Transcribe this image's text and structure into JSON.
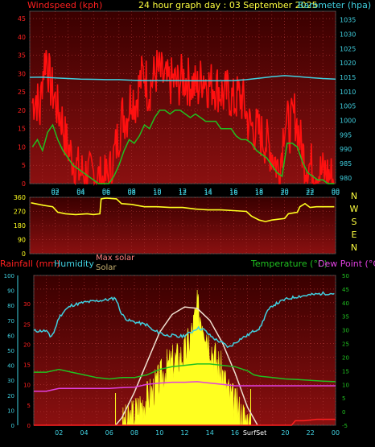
{
  "header": {
    "left_title": "Windspeed (kph)",
    "center_title": "24 hour graph day : 03 September 2025",
    "right_title": "Barometer (hpa)"
  },
  "colors": {
    "background": "#000000",
    "plot_top": "#3a0000",
    "plot_bottom": "#8a1010",
    "gridline": "#b23a3a",
    "red_text": "#ff2020",
    "cyan": "#40d0e0",
    "green": "#20c020",
    "yellow": "#ffff20",
    "magenta": "#e040e0",
    "light_pink": "#ff8080",
    "tan": "#c8b070",
    "white_curve": "#f0e0d0",
    "label_yellow": "#ffff40"
  },
  "x_axis": {
    "ticks": [
      "02",
      "04",
      "06",
      "08",
      "10",
      "12",
      "14",
      "16",
      "18",
      "20",
      "22",
      "00"
    ],
    "bottom_special": {
      "surfset_label": "SurfSet",
      "surfset_time": 17.25,
      "sunrise_time": 6.5
    }
  },
  "chart_data": [
    {
      "type": "line",
      "name": "wind_and_pressure",
      "x_unit": "hours from 00:00",
      "y_left_ticks": [
        0,
        5,
        10,
        15,
        20,
        25,
        30,
        35,
        40,
        45
      ],
      "ylim_left": [
        0,
        47
      ],
      "y_right_ticks": [
        980,
        985,
        990,
        995,
        1000,
        1005,
        1010,
        1015,
        1020,
        1025,
        1030,
        1035
      ],
      "ylim_right": [
        978,
        1038
      ],
      "grid": true,
      "series": [
        {
          "axis": "left",
          "x": [
            0.2,
            0.5,
            0.8,
            1.0,
            1.3,
            1.6,
            1.9,
            2.2,
            2.5,
            2.8,
            3.1,
            3.5,
            3.9,
            4.3,
            4.7,
            5.1,
            5.5,
            5.9,
            6.3,
            6.7,
            7.0,
            7.3,
            7.6,
            8.0,
            8.3,
            8.6,
            9.0,
            9.3,
            9.6,
            10.0,
            10.4,
            10.8,
            11.2,
            11.6,
            12.0,
            12.4,
            12.8,
            13.2,
            13.6,
            14.0,
            14.4,
            14.8,
            15.2,
            15.6,
            16.0,
            16.4,
            16.8,
            17.2,
            17.6,
            18.0,
            18.4,
            18.8,
            19.2,
            19.6,
            20.0,
            20.4,
            20.8,
            21.2,
            21.6,
            22.0,
            22.4,
            22.8,
            23.2,
            23.6,
            23.9
          ],
          "values": [
            22,
            24,
            19,
            30,
            36,
            27,
            24,
            20,
            18,
            12,
            9,
            6,
            3,
            3,
            2,
            3,
            1,
            1,
            3,
            9,
            14,
            19,
            18,
            25,
            22,
            27,
            31,
            25,
            28,
            31,
            29,
            27,
            28,
            27,
            29,
            28,
            27,
            26,
            30,
            27,
            27,
            26,
            24,
            25,
            22,
            24,
            22,
            16,
            15,
            14,
            12,
            10,
            7,
            3,
            18,
            15,
            19,
            12,
            6,
            5,
            4,
            3,
            3,
            2,
            1
          ]
        },
        {
          "axis": "left",
          "x": [
            0.2,
            0.6,
            1.0,
            1.4,
            1.8,
            2.2,
            2.6,
            3.0,
            3.4,
            3.8,
            4.2,
            4.6,
            5.0,
            5.4,
            5.8,
            6.2,
            6.6,
            7.0,
            7.4,
            7.8,
            8.2,
            8.6,
            9.0,
            9.4,
            9.8,
            10.2,
            10.6,
            11.0,
            11.4,
            11.8,
            12.2,
            12.6,
            13.0,
            13.4,
            13.8,
            14.2,
            14.6,
            15.0,
            15.4,
            15.8,
            16.2,
            16.6,
            17.0,
            17.4,
            17.8,
            18.2,
            18.6,
            19.0,
            19.4,
            19.8,
            20.2,
            20.6,
            21.0,
            21.4,
            21.8,
            22.2,
            22.6,
            23.0,
            23.4,
            23.9
          ],
          "values": [
            10,
            12,
            9,
            14,
            16,
            12,
            9,
            7,
            5,
            4,
            3,
            2,
            1,
            0,
            0,
            0,
            2,
            5,
            9,
            12,
            11,
            13,
            16,
            15,
            18,
            20,
            20,
            19,
            20,
            20,
            19,
            18,
            19,
            18,
            17,
            17,
            17,
            15,
            15,
            15,
            13,
            12,
            12,
            11,
            9,
            8,
            7,
            5,
            3,
            2,
            11,
            11,
            10,
            6,
            3,
            2,
            1,
            1,
            0,
            0
          ]
        },
        {
          "axis": "right",
          "x": [
            0.0,
            1.0,
            2.0,
            3.0,
            4.0,
            5.0,
            6.0,
            7.0,
            8.0,
            9.0,
            10.0,
            11.0,
            12.0,
            13.0,
            14.0,
            15.0,
            16.0,
            17.0,
            18.0,
            19.0,
            20.0,
            21.0,
            22.0,
            23.0,
            24.0
          ],
          "values": [
            1015,
            1015.1,
            1014.8,
            1014.6,
            1014.4,
            1014.3,
            1014.2,
            1014.2,
            1014,
            1013.9,
            1013.9,
            1013.9,
            1013.9,
            1013.8,
            1013.8,
            1013.8,
            1013.9,
            1014.2,
            1014.7,
            1015.2,
            1015.6,
            1015.3,
            1014.9,
            1014.6,
            1014.4
          ]
        }
      ]
    },
    {
      "type": "line",
      "name": "wind_direction",
      "x_unit": "hours from 00:00",
      "y_left_ticks": [
        0,
        90,
        180,
        270,
        360
      ],
      "ylim": [
        0,
        360
      ],
      "compass_labels": [
        "N",
        "W",
        "S",
        "E",
        "N"
      ],
      "grid": true,
      "series": [
        {
          "x": [
            0.1,
            1.0,
            1.8,
            2.2,
            2.8,
            3.6,
            4.5,
            5.0,
            5.5,
            5.6,
            6.0,
            6.8,
            7.2,
            8.0,
            9.0,
            10.0,
            11.0,
            12.0,
            13.0,
            14.0,
            15.0,
            16.0,
            17.0,
            17.4,
            18.0,
            18.5,
            19.0,
            19.5,
            20.0,
            20.3,
            21.0,
            21.2,
            21.6,
            22.0,
            22.5,
            23.0,
            23.9
          ],
          "values": [
            325,
            310,
            300,
            265,
            255,
            250,
            255,
            250,
            255,
            350,
            355,
            350,
            320,
            315,
            300,
            300,
            295,
            295,
            285,
            280,
            280,
            275,
            270,
            240,
            215,
            205,
            215,
            220,
            225,
            255,
            265,
            300,
            320,
            295,
            300,
            300,
            300
          ]
        }
      ]
    },
    {
      "type": "line",
      "name": "rain_humidity_temperature_solar",
      "x_unit": "hours from 00:00",
      "y_rainfall_ticks": [
        0,
        10,
        20,
        30,
        40,
        50,
        60,
        70,
        80,
        90,
        100
      ],
      "y_humidity_ticks": [
        0,
        5,
        10,
        15,
        20,
        25,
        30
      ],
      "y_temperature_ticks": [
        -5,
        0,
        5,
        10,
        15,
        20,
        25,
        30,
        35,
        40,
        45,
        50
      ],
      "ylim_rainfall": [
        0,
        100
      ],
      "ylim_temperature": [
        -5,
        50
      ],
      "legend": {
        "rainfall": "Rainfall (mm)",
        "humidity": "Humidity",
        "max_solar": "Max solar",
        "solar": "Solar",
        "temperature": "Temperature (°C)",
        "dewpoint": "Dew Point (°C)"
      },
      "series": [
        {
          "name": "Humidity",
          "axis": "rainfall",
          "x": [
            0.0,
            0.5,
            1.0,
            1.3,
            1.6,
            2.0,
            2.5,
            3.0,
            3.5,
            4.0,
            5.0,
            6.0,
            6.5,
            7.0,
            7.5,
            8.0,
            8.5,
            9.0,
            9.5,
            10.0,
            10.5,
            11.0,
            11.5,
            12.0,
            12.5,
            13.0,
            13.5,
            14.0,
            14.5,
            15.0,
            15.5,
            16.0,
            16.5,
            17.0,
            17.5,
            18.0,
            18.5,
            19.0,
            19.5,
            20.0,
            21.0,
            22.0,
            23.0,
            24.0
          ],
          "values": [
            63,
            63,
            63,
            59,
            62,
            72,
            77,
            80,
            81,
            82,
            83,
            84,
            85,
            74,
            70,
            69,
            68,
            67,
            63,
            62,
            60,
            60,
            59,
            60,
            62,
            65,
            64,
            60,
            57,
            55,
            52,
            55,
            58,
            60,
            63,
            65,
            75,
            80,
            82,
            84,
            86,
            87,
            88,
            88
          ]
        },
        {
          "name": "Temperature",
          "axis": "temperature",
          "x": [
            0.0,
            1.0,
            2.0,
            3.0,
            4.0,
            5.0,
            6.0,
            7.0,
            8.0,
            9.0,
            10.0,
            11.0,
            12.0,
            13.0,
            14.0,
            15.0,
            16.0,
            17.0,
            17.5,
            18.0,
            19.0,
            20.0,
            21.0,
            22.0,
            23.0,
            24.0
          ],
          "values": [
            14.5,
            14.5,
            15.5,
            14.5,
            13.5,
            12.5,
            12.0,
            12.5,
            12.5,
            13.5,
            15.5,
            16.5,
            17.0,
            17.5,
            17.5,
            17.0,
            16.5,
            15.0,
            13.5,
            13.0,
            12.5,
            12.0,
            11.8,
            11.5,
            11.2,
            11.0
          ]
        },
        {
          "name": "Dew Point",
          "axis": "temperature",
          "x": [
            0.0,
            1.0,
            2.0,
            3.0,
            4.0,
            5.0,
            6.0,
            7.0,
            8.0,
            9.0,
            10.0,
            11.0,
            12.0,
            13.0,
            14.0,
            15.0,
            16.0,
            17.0,
            18.0,
            19.0,
            20.0,
            21.0,
            22.0,
            23.0,
            24.0
          ],
          "values": [
            7.5,
            7.5,
            8.5,
            8.5,
            8.5,
            8.5,
            8.5,
            8.8,
            9.0,
            10.0,
            10.5,
            10.8,
            10.8,
            11.0,
            10.5,
            10.0,
            9.5,
            9.5,
            9.5,
            9.5,
            9.5,
            9.5,
            9.5,
            9.5,
            9.5
          ]
        },
        {
          "name": "Max solar",
          "axis": "rainfall",
          "x": [
            6.5,
            7.0,
            8.0,
            9.0,
            10.0,
            11.0,
            12.0,
            13.0,
            14.0,
            15.0,
            16.0,
            17.0,
            17.8
          ],
          "values": [
            0,
            5,
            22,
            42,
            62,
            74,
            79,
            78,
            70,
            55,
            35,
            12,
            0
          ]
        },
        {
          "name": "Solar",
          "axis": "rainfall",
          "type": "area",
          "x": [
            7.0,
            7.5,
            8.0,
            8.5,
            9.0,
            9.5,
            10.0,
            10.5,
            11.0,
            11.5,
            12.0,
            12.5,
            13.0,
            13.5,
            14.0,
            14.5,
            15.0,
            15.5,
            16.0,
            16.5,
            17.0,
            17.3
          ],
          "values": [
            0,
            3,
            8,
            14,
            18,
            24,
            30,
            38,
            42,
            45,
            48,
            60,
            78,
            70,
            55,
            44,
            35,
            22,
            14,
            8,
            3,
            0
          ]
        },
        {
          "name": "Rainfall",
          "axis": "rainfall",
          "x": [
            0.0,
            20.5,
            20.8,
            21.5,
            22.5,
            24.0
          ],
          "values": [
            0,
            0,
            3,
            3,
            4,
            4
          ]
        }
      ]
    }
  ]
}
